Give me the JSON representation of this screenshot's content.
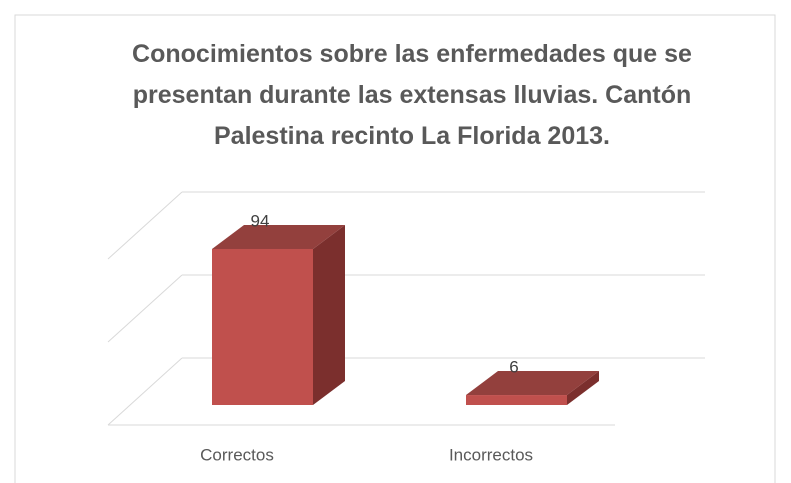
{
  "chart_data": {
    "type": "bar3d",
    "title": "Conocimientos sobre las enfermedades que se presentan durante las extensas lluvias. Cantón Palestina recinto La Florida 2013.",
    "categories": [
      "Correctos",
      "Incorrectos"
    ],
    "values": [
      94,
      6
    ],
    "color": "#c0504d",
    "ylim": [
      0,
      100
    ],
    "yticks": [
      0,
      50,
      100
    ],
    "grid": true
  }
}
